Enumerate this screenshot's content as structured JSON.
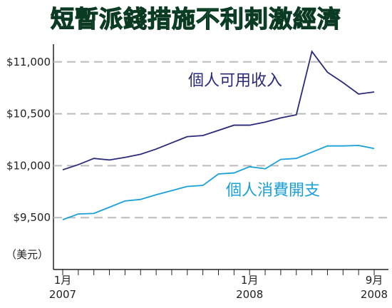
{
  "chart_data": {
    "type": "line",
    "title": "短暫派錢措施不利刺激經濟",
    "y_label": "（美元）",
    "categories": [
      "1月\n2007",
      null,
      null,
      null,
      null,
      null,
      null,
      null,
      null,
      null,
      null,
      null,
      "1月\n2008",
      null,
      null,
      null,
      null,
      null,
      null,
      null,
      "9月\n2008"
    ],
    "series": [
      {
        "name": "個人可用收入",
        "color": "#2b2a7a",
        "values": [
          9960,
          10010,
          10070,
          10055,
          10080,
          10110,
          10160,
          10220,
          10280,
          10290,
          10340,
          10390,
          10390,
          10420,
          10460,
          10490,
          11100,
          10900,
          10800,
          10690,
          10710
        ]
      },
      {
        "name": "個人消費開支",
        "color": "#1aa0d8",
        "values": [
          9480,
          9535,
          9540,
          9600,
          9660,
          9675,
          9720,
          9760,
          9800,
          9810,
          9920,
          9930,
          9990,
          9970,
          10060,
          10070,
          10130,
          10190,
          10190,
          10195,
          10165
        ]
      }
    ],
    "ylim": [
      9000,
      11170
    ],
    "yticks": [
      {
        "value": 9500,
        "label": "$9,500"
      },
      {
        "value": 10000,
        "label": "$10,000"
      },
      {
        "value": 10500,
        "label": "$10,500"
      },
      {
        "value": 11000,
        "label": "$11,000"
      }
    ],
    "grid": true
  }
}
